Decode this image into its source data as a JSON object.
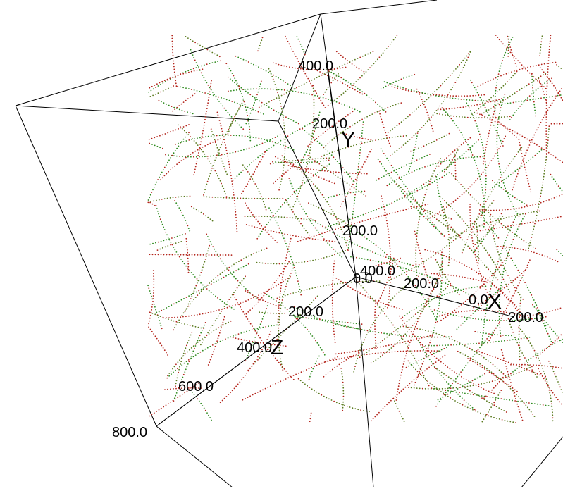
{
  "chart_data": {
    "type": "scatter",
    "dimension": "3d",
    "background": "#ffffff",
    "grid": false,
    "point_colors": [
      "#2d8a1e",
      "#b3241b",
      "#5a7a1f"
    ],
    "axes": {
      "x": {
        "label": "X",
        "ticks": [
          "0.0",
          "200.0"
        ]
      },
      "y": {
        "label": "Y",
        "ticks": [
          "200.0",
          "400.0"
        ]
      },
      "z": {
        "label": "Z",
        "ticks": [
          "200.0",
          "400.0",
          "600.0",
          "800.0"
        ]
      }
    },
    "extra_tick_labels": [
      "0.0",
      "200.0",
      "400.0"
    ],
    "series": [
      {
        "values": "3D trajectory point clouds (dotted curves), approximately 300 tracks"
      }
    ]
  }
}
